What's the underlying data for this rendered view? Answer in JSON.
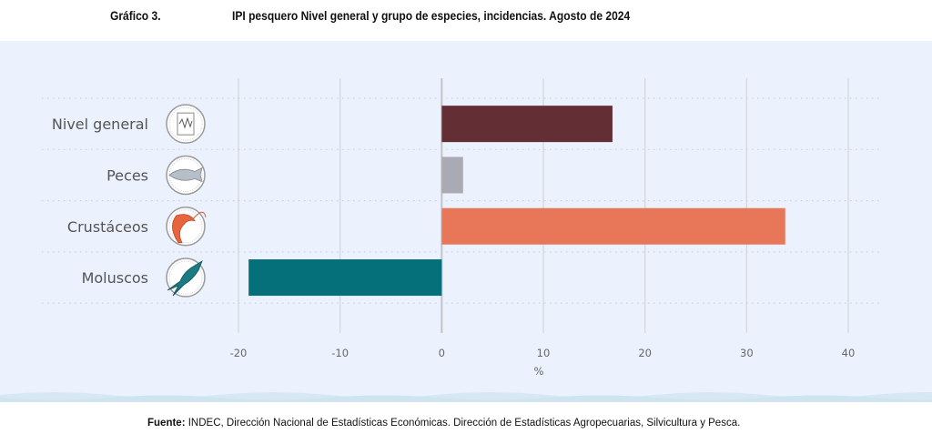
{
  "header": {
    "figure_number": "Gráfico 3.",
    "title": "IPI pesquero Nivel general y grupo de especies, incidencias. Agosto de 2024"
  },
  "footer": {
    "source_label": "Fuente:",
    "source_text": " INDEC, Dirección Nacional de Estadísticas Económicas. Dirección de Estadísticas Agropecuarias, Silvicultura y Pesca."
  },
  "colors": {
    "panel_bg": "#ebf1fd",
    "nivel_general": "#632f35",
    "peces": "#aaaab4",
    "crustaceos": "#e8775a",
    "moluscos": "#05707a",
    "gridline": "#d6d8dc",
    "zero_line": "#c3c3c6"
  },
  "chart_data": {
    "type": "bar",
    "orientation": "horizontal",
    "title": "IPI pesquero Nivel general y grupo de especies, incidencias. Agosto de 2024",
    "categories": [
      "Nivel general",
      "Peces",
      "Crustáceos",
      "Moluscos"
    ],
    "category_icons": [
      "chart-paper-icon",
      "fish-icon",
      "shrimp-icon",
      "squid-icon"
    ],
    "values": [
      16.8,
      2.1,
      33.8,
      -19.0
    ],
    "xlabel": "%",
    "ylabel": "",
    "xlim": [
      -20,
      40
    ],
    "xticks": [
      -20,
      -10,
      0,
      10,
      20,
      30,
      40
    ],
    "xtick_labels": [
      "-20",
      "-10",
      "0",
      "10",
      "20",
      "30",
      "40"
    ],
    "grid": true,
    "legend": "none"
  }
}
